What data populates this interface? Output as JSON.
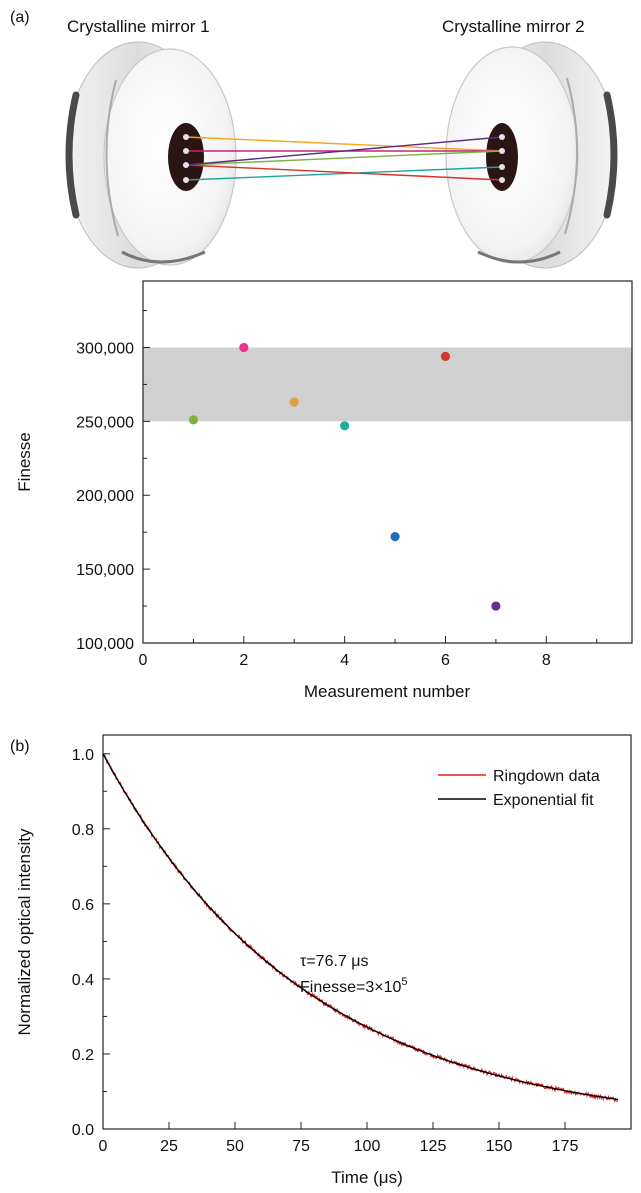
{
  "figure": {
    "panel_a_label": "(a)",
    "panel_b_label": "(b)",
    "mirror1_label": "Crystalline mirror 1",
    "mirror2_label": "Crystalline mirror 2",
    "beam_colors": [
      "#f4a71d",
      "#c6237e",
      "#7cb342",
      "#1ea39d",
      "#d6322b",
      "#5a2d82"
    ]
  },
  "chart_data": [
    {
      "type": "scatter",
      "xlabel": "Measurement number",
      "ylabel": "Finesse",
      "xlim": [
        0,
        9.7
      ],
      "ylim": [
        100000,
        345000
      ],
      "xticks": [
        0,
        2,
        4,
        6,
        8
      ],
      "yticks": [
        100000,
        150000,
        200000,
        250000,
        300000
      ],
      "ytick_labels": [
        "100,000",
        "150,000",
        "200,000",
        "250,000",
        "300,000"
      ],
      "shaded_band": [
        250000,
        300000
      ],
      "shaded_color": "#d0d0d0",
      "points": [
        {
          "x": 1,
          "y": 251000,
          "color": "#7cb342"
        },
        {
          "x": 2,
          "y": 300000,
          "color": "#e6358a"
        },
        {
          "x": 3,
          "y": 263000,
          "color": "#e0a040"
        },
        {
          "x": 4,
          "y": 247000,
          "color": "#1ab0a0"
        },
        {
          "x": 5,
          "y": 172000,
          "color": "#1f6fb8"
        },
        {
          "x": 6,
          "y": 294000,
          "color": "#d0392b"
        },
        {
          "x": 7,
          "y": 125000,
          "color": "#6a2c8c"
        }
      ],
      "grid": false
    },
    {
      "type": "line",
      "xlabel": "Time (μs)",
      "ylabel": "Normalized optical intensity",
      "xlim": [
        0,
        200
      ],
      "ylim": [
        0,
        1.05
      ],
      "xticks": [
        0,
        25,
        50,
        75,
        100,
        125,
        150,
        175
      ],
      "yticks": [
        0.0,
        0.2,
        0.4,
        0.6,
        0.8,
        1.0
      ],
      "ytick_labels": [
        "0.0",
        "0.2",
        "0.4",
        "0.6",
        "0.8",
        "1.0"
      ],
      "series": [
        {
          "name": "Ringdown data",
          "color": "#e0201e",
          "type": "noisy",
          "tau": 76.7,
          "x_range": [
            0,
            195
          ],
          "noise": 0.006
        },
        {
          "name": "Exponential fit",
          "color": "#000000",
          "type": "fit",
          "tau": 76.7,
          "x_range": [
            0,
            195
          ]
        }
      ],
      "legend_position": "top-right",
      "annotation_line1": "τ=76.7 μs",
      "annotation_line2_prefix": "Finesse=3×10",
      "annotation_line2_exp": "5",
      "grid": false
    }
  ]
}
